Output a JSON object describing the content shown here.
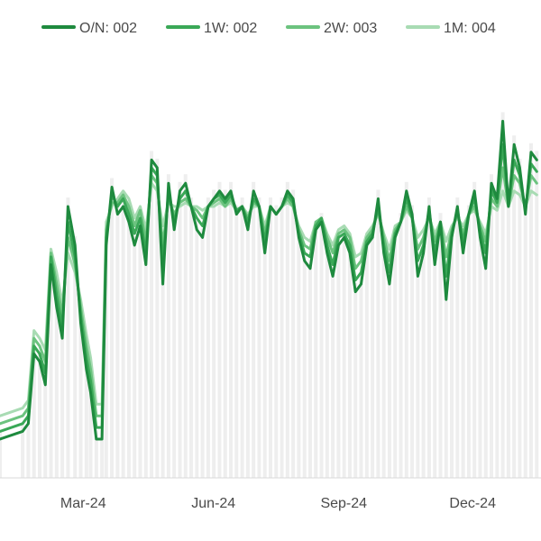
{
  "chart_data": {
    "type": "line",
    "title": "",
    "xlabel": "",
    "ylabel": "",
    "legend_position": "top",
    "grid": false,
    "background_bars": "light gray vertical bars behind the lines",
    "x_tick_labels": [
      "Mar-24",
      "Jun-24",
      "Sep-24",
      "Dec-24"
    ],
    "x": [
      "2024-01-15",
      "2024-01-31",
      "2024-02-04",
      "2024-02-08",
      "2024-02-12",
      "2024-02-16",
      "2024-02-20",
      "2024-02-24",
      "2024-02-28",
      "2024-03-03",
      "2024-03-08",
      "2024-03-12",
      "2024-03-16",
      "2024-03-19",
      "2024-03-23",
      "2024-03-27",
      "2024-03-30",
      "2024-04-03",
      "2024-04-07",
      "2024-04-11",
      "2024-04-15",
      "2024-04-19",
      "2024-04-23",
      "2024-04-27",
      "2024-05-01",
      "2024-05-05",
      "2024-05-09",
      "2024-05-13",
      "2024-05-17",
      "2024-05-21",
      "2024-05-25",
      "2024-05-29",
      "2024-06-02",
      "2024-06-06",
      "2024-06-10",
      "2024-06-14",
      "2024-06-18",
      "2024-06-22",
      "2024-06-26",
      "2024-06-30",
      "2024-07-04",
      "2024-07-08",
      "2024-07-12",
      "2024-07-16",
      "2024-07-20",
      "2024-07-24",
      "2024-07-28",
      "2024-08-01",
      "2024-08-05",
      "2024-08-09",
      "2024-08-13",
      "2024-08-17",
      "2024-08-21",
      "2024-08-25",
      "2024-08-29",
      "2024-09-02",
      "2024-09-06",
      "2024-09-10",
      "2024-09-14",
      "2024-09-18",
      "2024-09-22",
      "2024-09-26",
      "2024-09-30",
      "2024-10-04",
      "2024-10-08",
      "2024-10-12",
      "2024-10-16",
      "2024-10-20",
      "2024-10-24",
      "2024-10-28",
      "2024-11-01",
      "2024-11-05",
      "2024-11-09",
      "2024-11-13",
      "2024-11-17",
      "2024-11-21",
      "2024-11-25",
      "2024-11-29",
      "2024-12-03",
      "2024-12-07",
      "2024-12-11",
      "2024-12-15",
      "2024-12-19",
      "2024-12-23",
      "2024-12-27",
      "2024-12-31",
      "2025-01-04",
      "2025-01-08",
      "2025-01-12",
      "2025-01-16",
      "2025-01-20",
      "2025-01-24",
      "2025-01-28"
    ],
    "series": [
      {
        "name": "O/N: 002",
        "color": "#1e8a3e",
        "values": [
          10,
          12,
          14,
          32,
          30,
          24,
          55,
          44,
          36,
          70,
          60,
          40,
          28,
          22,
          10,
          10,
          60,
          75,
          68,
          70,
          66,
          60,
          65,
          55,
          82,
          80,
          50,
          76,
          64,
          74,
          76,
          70,
          64,
          62,
          70,
          72,
          74,
          72,
          74,
          68,
          70,
          64,
          74,
          70,
          58,
          70,
          68,
          70,
          74,
          72,
          62,
          56,
          54,
          64,
          66,
          58,
          52,
          60,
          62,
          58,
          48,
          50,
          60,
          62,
          72,
          58,
          50,
          62,
          66,
          74,
          68,
          52,
          58,
          70,
          55,
          66,
          46,
          62,
          70,
          58,
          68,
          74,
          62,
          54,
          76,
          72,
          92,
          70,
          86,
          80,
          68,
          84,
          82
        ]
      },
      {
        "name": "1W: 002",
        "color": "#3aa857",
        "values": [
          12,
          14,
          16,
          34,
          32,
          27,
          57,
          47,
          39,
          66,
          57,
          42,
          31,
          25,
          13,
          13,
          62,
          73,
          70,
          72,
          68,
          63,
          67,
          58,
          80,
          78,
          55,
          74,
          66,
          72,
          74,
          70,
          67,
          65,
          70,
          72,
          73,
          71,
          73,
          69,
          70,
          66,
          72,
          70,
          61,
          70,
          68,
          70,
          73,
          71,
          63,
          58,
          57,
          65,
          67,
          60,
          55,
          62,
          63,
          60,
          51,
          53,
          61,
          63,
          70,
          60,
          53,
          63,
          66,
          72,
          67,
          56,
          60,
          69,
          58,
          66,
          52,
          63,
          69,
          61,
          68,
          72,
          64,
          58,
          74,
          71,
          86,
          70,
          82,
          78,
          69,
          81,
          79
        ]
      },
      {
        "name": "2W: 003",
        "color": "#6cc37f",
        "values": [
          14,
          16,
          18,
          36,
          34,
          30,
          58,
          50,
          42,
          62,
          55,
          44,
          34,
          28,
          16,
          16,
          64,
          71,
          71,
          73,
          70,
          65,
          69,
          61,
          78,
          76,
          60,
          72,
          68,
          71,
          72,
          70,
          69,
          67,
          70,
          71,
          72,
          70,
          72,
          69,
          70,
          67,
          71,
          70,
          63,
          70,
          68,
          70,
          72,
          70,
          64,
          60,
          59,
          66,
          67,
          62,
          58,
          63,
          64,
          62,
          54,
          56,
          62,
          64,
          69,
          62,
          56,
          64,
          66,
          70,
          67,
          59,
          62,
          68,
          61,
          66,
          57,
          64,
          68,
          63,
          68,
          70,
          65,
          61,
          72,
          70,
          80,
          70,
          78,
          76,
          70,
          78,
          76
        ]
      },
      {
        "name": "1M: 004",
        "color": "#a8dbb3",
        "values": [
          16,
          18,
          20,
          38,
          36,
          33,
          59,
          53,
          45,
          58,
          53,
          46,
          37,
          31,
          19,
          19,
          66,
          70,
          72,
          74,
          72,
          67,
          70,
          64,
          76,
          74,
          65,
          71,
          70,
          70,
          71,
          70,
          70,
          69,
          70,
          70,
          71,
          70,
          71,
          69,
          70,
          68,
          70,
          70,
          65,
          70,
          68,
          70,
          71,
          70,
          65,
          62,
          61,
          66,
          67,
          63,
          60,
          64,
          65,
          63,
          57,
          58,
          63,
          65,
          68,
          63,
          59,
          65,
          66,
          69,
          67,
          62,
          64,
          67,
          63,
          66,
          61,
          65,
          67,
          65,
          68,
          69,
          66,
          63,
          70,
          69,
          74,
          70,
          74,
          73,
          70,
          74,
          73
        ]
      }
    ]
  }
}
